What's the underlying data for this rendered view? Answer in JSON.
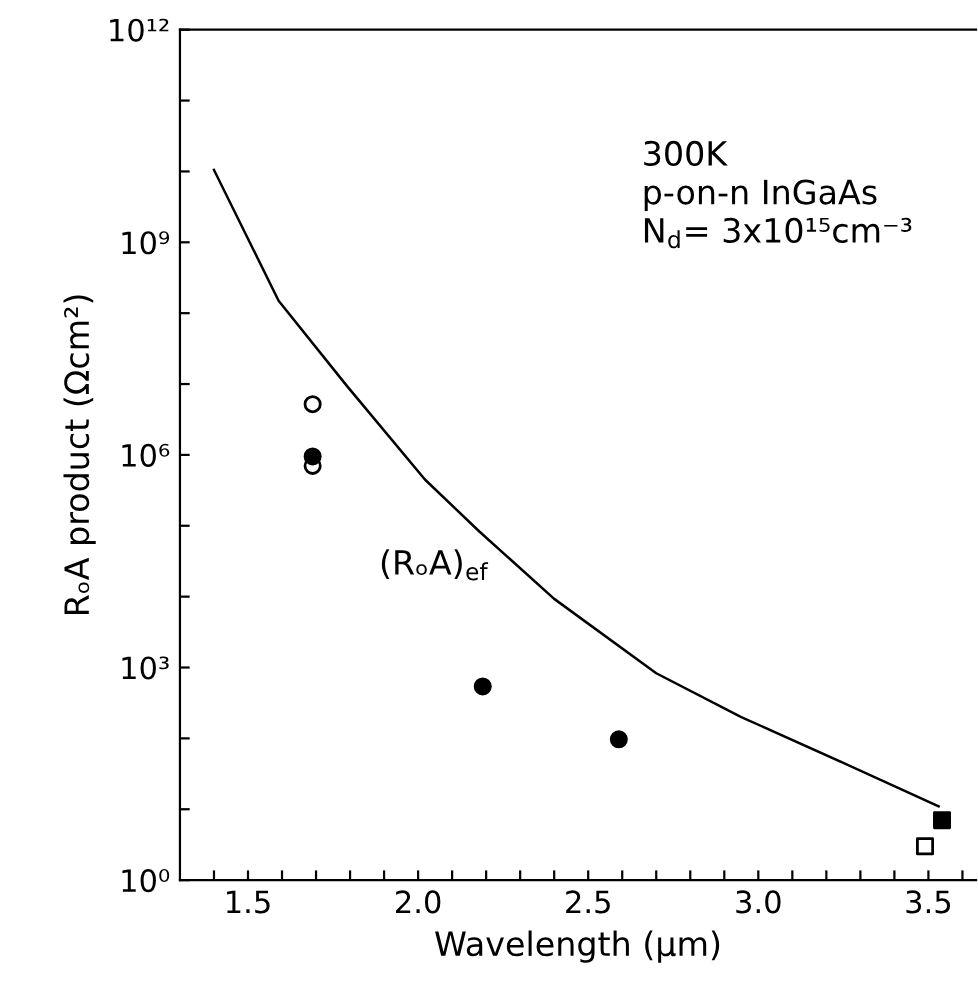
{
  "chart_data": {
    "type": "scatter",
    "xlabel": "Wavelength (μm)",
    "ylabel": "RₒA product (Ωcm²)",
    "log": "y",
    "xlim": [
      1.3,
      3.64
    ],
    "ylim": [
      1,
      1000000000000.0
    ],
    "xticks": [
      {
        "value": 1.4,
        "label": null
      },
      1.5,
      {
        "value": 1.6,
        "label": null
      },
      {
        "value": 1.7,
        "label": null
      },
      {
        "value": 1.8,
        "label": null
      },
      {
        "value": 1.9,
        "label": null
      },
      {
        "value": 2.0,
        "label": "2.0"
      },
      {
        "value": 2.1,
        "label": null
      },
      {
        "value": 2.2,
        "label": null
      },
      {
        "value": 2.3,
        "label": null
      },
      {
        "value": 2.4,
        "label": null
      },
      2.5,
      {
        "value": 2.6,
        "label": null
      },
      {
        "value": 2.7,
        "label": null
      },
      {
        "value": 2.8,
        "label": null
      },
      {
        "value": 2.9,
        "label": null
      },
      {
        "value": 3.0,
        "label": "3.0"
      },
      {
        "value": 3.1,
        "label": null
      },
      {
        "value": 3.2,
        "label": null
      },
      {
        "value": 3.3,
        "label": null
      },
      {
        "value": 3.4,
        "label": null
      },
      3.5,
      {
        "value": 3.6,
        "label": null
      }
    ],
    "yticks": [
      {
        "value": 1,
        "label": "10⁰"
      },
      {
        "value": 10,
        "label": null
      },
      {
        "value": 100,
        "label": null
      },
      {
        "value": 1000,
        "label": "10³"
      },
      {
        "value": 10000.0,
        "label": null
      },
      {
        "value": 100000.0,
        "label": null
      },
      {
        "value": 1000000.0,
        "label": "10⁶"
      },
      {
        "value": 10000000.0,
        "label": null
      },
      {
        "value": 100000000.0,
        "label": null
      },
      {
        "value": 1000000000.0,
        "label": "10⁹"
      },
      {
        "value": 10000000000.0,
        "label": null
      },
      {
        "value": 100000000000.0,
        "label": null
      },
      {
        "value": 1000000000000.0,
        "label": "10¹²"
      }
    ],
    "series": [
      {
        "type": "line",
        "color": "#000000",
        "marker": "none",
        "line_style": "solid",
        "x": [
          1.4,
          1.59,
          1.79,
          2.02,
          2.18,
          2.4,
          2.7,
          2.95,
          3.25,
          3.53
        ],
        "values": [
          10500000000.0,
          150000000.0,
          9500000.0,
          450000.0,
          83000.0,
          9300.0,
          830,
          200,
          45,
          11
        ]
      },
      {
        "color": "#ffffff",
        "marker": "circle",
        "x": [
          1.69,
          1.69
        ],
        "values": [
          5200000.0,
          700000.0
        ]
      },
      {
        "color": "#000000",
        "marker": "circle",
        "x": [
          1.69,
          2.19,
          2.59
        ],
        "values": [
          950000.0,
          540,
          97
        ]
      },
      {
        "color": "#000000",
        "marker": "square",
        "x": [
          3.54
        ],
        "values": [
          7
        ]
      },
      {
        "color": "#ffffff",
        "marker": "square",
        "x": [
          3.49
        ],
        "values": [
          3
        ]
      }
    ],
    "annotations": [
      "(RₒA)$_{ef}$",
      "300K\np-on-n InGaAs\nN$_{d}$= 3x10¹⁵cm⁻³"
    ]
  }
}
